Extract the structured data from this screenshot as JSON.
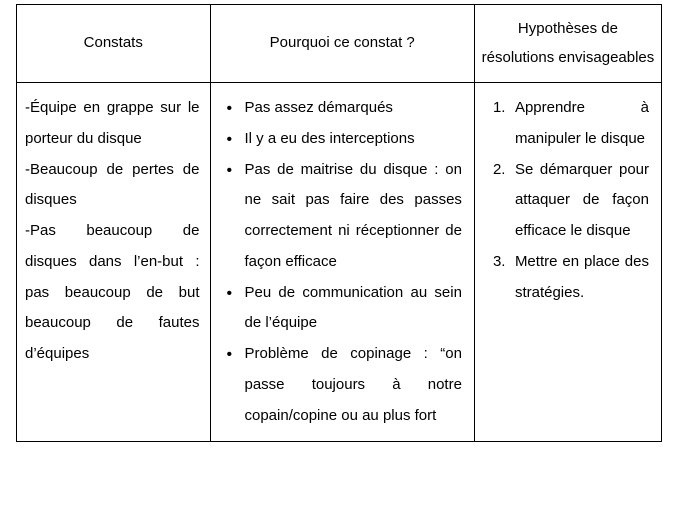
{
  "table": {
    "columns": [
      {
        "label": "Constats",
        "width_pct": 30
      },
      {
        "label": "Pourquoi ce constat ?",
        "width_pct": 41
      },
      {
        "label": "Hypothèses de résolutions envisageables",
        "width_pct": 29
      }
    ],
    "border_color": "#000000",
    "background_color": "#ffffff",
    "text_color": "#000000",
    "font_size_pt": 11,
    "line_height": 2.05
  },
  "constats": {
    "lines": [
      "-Équipe en grappe sur le porteur du disque",
      "-Beaucoup de pertes de disques",
      "-Pas beaucoup de disques dans l’en-but : pas beaucoup de but beaucoup de fautes d’équipes"
    ]
  },
  "pourquoi": {
    "items": [
      "Pas assez démarqués",
      "Il y a eu des interceptions",
      "Pas de maitrise du disque : on ne sait pas faire des passes correctement ni réceptionner de façon efficace",
      "Peu de communication au sein de l’équipe",
      "Problème de copinage : “on passe toujours à notre copain/copine ou au plus fort"
    ]
  },
  "hypotheses": {
    "items": [
      "Apprendre à manipuler le disque",
      "Se démarquer pour attaquer de façon efficace le disque",
      "Mettre en place des stratégies."
    ]
  }
}
